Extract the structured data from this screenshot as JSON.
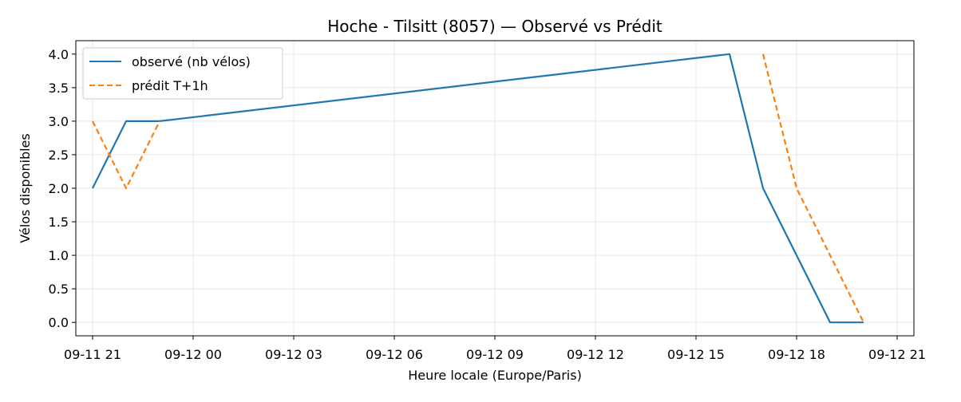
{
  "chart_data": {
    "type": "line",
    "title": "Hoche - Tilsitt (8057) — Observé vs Prédit",
    "xlabel": "Heure locale (Europe/Paris)",
    "ylabel": "Vélos disponibles",
    "x_ticks": [
      "09-11 21",
      "09-12 00",
      "09-12 03",
      "09-12 06",
      "09-12 09",
      "09-12 12",
      "09-12 15",
      "09-12 18",
      "09-12 21"
    ],
    "y_ticks": [
      "0.0",
      "0.5",
      "1.0",
      "1.5",
      "2.0",
      "2.5",
      "3.0",
      "3.5",
      "4.0"
    ],
    "xlim": [
      "2025-09-11 20:30",
      "2025-09-12 21:30"
    ],
    "ylim": [
      -0.2,
      4.2
    ],
    "grid": true,
    "legend_position": "upper-left",
    "series": [
      {
        "name": "observé (nb vélos)",
        "color": "#1f77b4",
        "style": "solid",
        "points": [
          {
            "x": "2025-09-11 21:00",
            "y": 2
          },
          {
            "x": "2025-09-11 22:00",
            "y": 3
          },
          {
            "x": "2025-09-11 23:00",
            "y": 3
          },
          {
            "x": "2025-09-12 16:00",
            "y": 4
          },
          {
            "x": "2025-09-12 17:00",
            "y": 2
          },
          {
            "x": "2025-09-12 19:00",
            "y": 0
          },
          {
            "x": "2025-09-12 20:00",
            "y": 0
          }
        ]
      },
      {
        "name": "prédit T+1h",
        "color": "#ff7f0e",
        "style": "dashed",
        "segments": [
          [
            {
              "x": "2025-09-11 21:00",
              "y": 3
            },
            {
              "x": "2025-09-11 22:00",
              "y": 2
            },
            {
              "x": "2025-09-11 23:00",
              "y": 3
            }
          ],
          [
            {
              "x": "2025-09-12 17:00",
              "y": 4
            },
            {
              "x": "2025-09-12 18:00",
              "y": 2
            },
            {
              "x": "2025-09-12 20:00",
              "y": 0
            }
          ]
        ]
      }
    ]
  }
}
